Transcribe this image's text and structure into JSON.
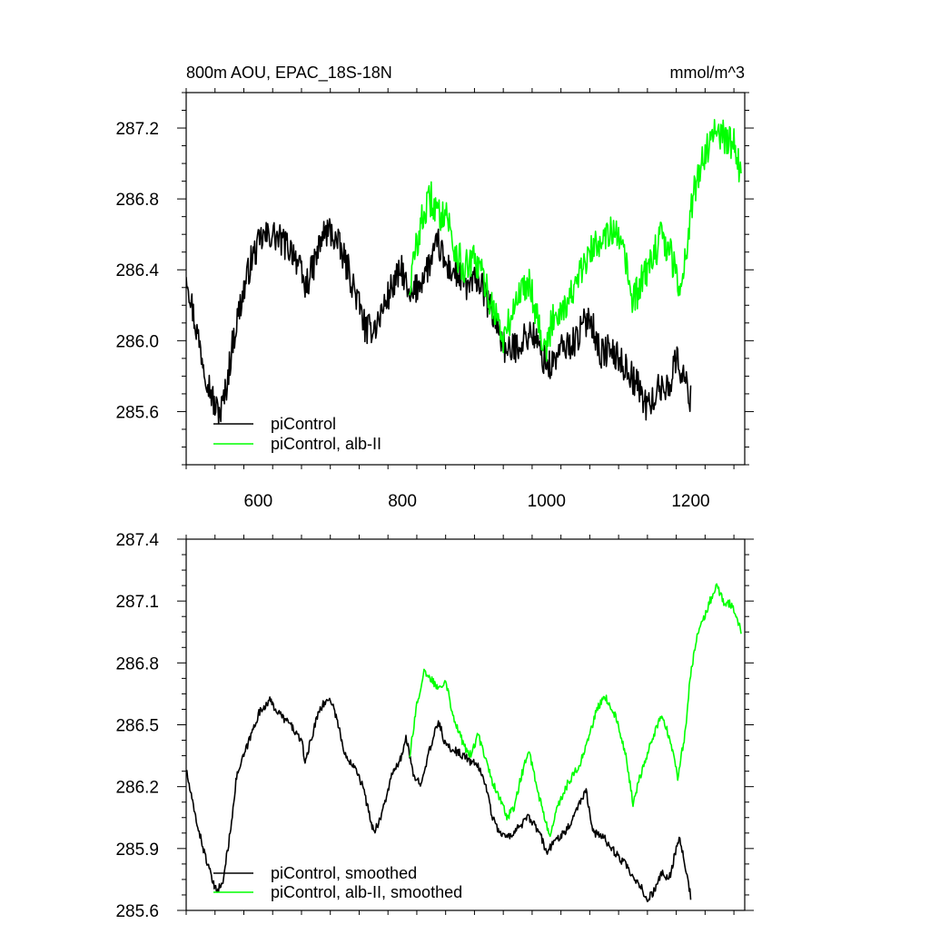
{
  "chart_data": [
    {
      "type": "line",
      "title": "800m AOU, EPAC_18S-18N",
      "units": "mmol/m^3",
      "xlim": [
        500,
        1275
      ],
      "ylim": [
        285.3,
        287.4
      ],
      "x_ticks": [
        600,
        800,
        1000,
        1200
      ],
      "y_ticks": [
        285.6,
        286.0,
        286.4,
        286.8,
        287.2
      ],
      "y_tick_labels": [
        "285.6",
        "286.0",
        "286.4",
        "286.8",
        "287.2"
      ],
      "grid": false,
      "legend_position": "bottom-left",
      "series": [
        {
          "name": "piControl",
          "color": "#000000",
          "noise": 0.09,
          "points": [
            [
              500,
              286.4
            ],
            [
              510,
              286.15
            ],
            [
              520,
              285.95
            ],
            [
              530,
              285.78
            ],
            [
              540,
              285.62
            ],
            [
              548,
              285.6
            ],
            [
              555,
              285.72
            ],
            [
              565,
              286.0
            ],
            [
              575,
              286.2
            ],
            [
              590,
              286.45
            ],
            [
              605,
              286.58
            ],
            [
              620,
              286.6
            ],
            [
              635,
              286.55
            ],
            [
              650,
              286.5
            ],
            [
              665,
              286.3
            ],
            [
              675,
              286.4
            ],
            [
              690,
              286.6
            ],
            [
              700,
              286.62
            ],
            [
              710,
              286.55
            ],
            [
              725,
              286.4
            ],
            [
              740,
              286.2
            ],
            [
              750,
              286.05
            ],
            [
              765,
              286.1
            ],
            [
              785,
              286.3
            ],
            [
              800,
              286.4
            ],
            [
              810,
              286.22
            ],
            [
              820,
              286.3
            ],
            [
              840,
              286.45
            ],
            [
              850,
              286.55
            ],
            [
              860,
              286.42
            ],
            [
              875,
              286.38
            ],
            [
              890,
              286.3
            ],
            [
              905,
              286.35
            ],
            [
              920,
              286.2
            ],
            [
              935,
              286.05
            ],
            [
              945,
              285.92
            ],
            [
              960,
              285.98
            ],
            [
              980,
              286.05
            ],
            [
              995,
              285.9
            ],
            [
              1005,
              285.85
            ],
            [
              1020,
              285.95
            ],
            [
              1040,
              286.0
            ],
            [
              1060,
              286.15
            ],
            [
              1075,
              285.92
            ],
            [
              1085,
              285.95
            ],
            [
              1100,
              285.9
            ],
            [
              1115,
              285.82
            ],
            [
              1130,
              285.72
            ],
            [
              1140,
              285.62
            ],
            [
              1155,
              285.72
            ],
            [
              1170,
              285.75
            ],
            [
              1180,
              285.9
            ],
            [
              1190,
              285.8
            ],
            [
              1200,
              285.67
            ]
          ]
        },
        {
          "name": "piControl, alb-II",
          "color": "#00ff00",
          "noise": 0.1,
          "points": [
            [
              810,
              286.3
            ],
            [
              820,
              286.55
            ],
            [
              830,
              286.72
            ],
            [
              840,
              286.8
            ],
            [
              850,
              286.7
            ],
            [
              860,
              286.75
            ],
            [
              870,
              286.55
            ],
            [
              885,
              286.4
            ],
            [
              900,
              286.45
            ],
            [
              910,
              286.38
            ],
            [
              920,
              286.25
            ],
            [
              930,
              286.15
            ],
            [
              940,
              286.0
            ],
            [
              950,
              286.12
            ],
            [
              960,
              286.25
            ],
            [
              975,
              286.35
            ],
            [
              985,
              286.18
            ],
            [
              995,
              286.0
            ],
            [
              1000,
              285.95
            ],
            [
              1010,
              286.15
            ],
            [
              1025,
              286.2
            ],
            [
              1040,
              286.3
            ],
            [
              1055,
              286.45
            ],
            [
              1070,
              286.55
            ],
            [
              1080,
              286.62
            ],
            [
              1095,
              286.6
            ],
            [
              1110,
              286.45
            ],
            [
              1120,
              286.2
            ],
            [
              1130,
              286.32
            ],
            [
              1145,
              286.45
            ],
            [
              1160,
              286.6
            ],
            [
              1175,
              286.45
            ],
            [
              1185,
              286.3
            ],
            [
              1195,
              286.55
            ],
            [
              1205,
              286.85
            ],
            [
              1215,
              287.0
            ],
            [
              1225,
              287.12
            ],
            [
              1235,
              287.2
            ],
            [
              1245,
              287.15
            ],
            [
              1260,
              287.12
            ],
            [
              1270,
              286.92
            ]
          ]
        }
      ]
    },
    {
      "type": "line",
      "title": "",
      "xlim": [
        500,
        1275
      ],
      "ylim": [
        285.6,
        287.4
      ],
      "x_ticks": [
        600,
        800,
        1000,
        1200
      ],
      "y_ticks": [
        285.6,
        285.9,
        286.2,
        286.5,
        286.8,
        287.1,
        287.4
      ],
      "y_tick_labels": [
        "285.6",
        "285.9",
        "286.2",
        "286.5",
        "286.8",
        "287.1",
        "287.4"
      ],
      "grid": false,
      "legend_position": "bottom-left",
      "series": [
        {
          "name": "piControl, smoothed",
          "color": "#000000",
          "noise": 0.02,
          "points": [
            [
              500,
              286.28
            ],
            [
              510,
              286.1
            ],
            [
              520,
              285.95
            ],
            [
              530,
              285.82
            ],
            [
              540,
              285.7
            ],
            [
              550,
              285.72
            ],
            [
              560,
              285.95
            ],
            [
              570,
              286.25
            ],
            [
              585,
              286.4
            ],
            [
              600,
              286.55
            ],
            [
              615,
              286.62
            ],
            [
              630,
              286.55
            ],
            [
              645,
              286.5
            ],
            [
              660,
              286.42
            ],
            [
              665,
              286.32
            ],
            [
              675,
              286.45
            ],
            [
              685,
              286.58
            ],
            [
              700,
              286.63
            ],
            [
              710,
              286.52
            ],
            [
              720,
              286.35
            ],
            [
              735,
              286.3
            ],
            [
              745,
              286.2
            ],
            [
              760,
              285.98
            ],
            [
              770,
              286.05
            ],
            [
              785,
              286.25
            ],
            [
              800,
              286.35
            ],
            [
              805,
              286.45
            ],
            [
              815,
              286.25
            ],
            [
              825,
              286.22
            ],
            [
              840,
              286.4
            ],
            [
              850,
              286.52
            ],
            [
              860,
              286.4
            ],
            [
              870,
              286.38
            ],
            [
              885,
              286.35
            ],
            [
              895,
              286.32
            ],
            [
              905,
              286.3
            ],
            [
              915,
              286.22
            ],
            [
              925,
              286.05
            ],
            [
              935,
              285.98
            ],
            [
              945,
              285.95
            ],
            [
              960,
              286.0
            ],
            [
              975,
              286.05
            ],
            [
              990,
              285.98
            ],
            [
              1000,
              285.88
            ],
            [
              1015,
              285.95
            ],
            [
              1030,
              286.0
            ],
            [
              1045,
              286.12
            ],
            [
              1055,
              286.18
            ],
            [
              1065,
              285.98
            ],
            [
              1080,
              285.95
            ],
            [
              1095,
              285.88
            ],
            [
              1110,
              285.82
            ],
            [
              1120,
              285.75
            ],
            [
              1130,
              285.72
            ],
            [
              1140,
              285.65
            ],
            [
              1150,
              285.7
            ],
            [
              1160,
              285.78
            ],
            [
              1170,
              285.75
            ],
            [
              1180,
              285.9
            ],
            [
              1185,
              285.95
            ],
            [
              1190,
              285.85
            ],
            [
              1200,
              285.67
            ]
          ]
        },
        {
          "name": "piControl, alb-II, smoothed",
          "color": "#00ff00",
          "noise": 0.02,
          "points": [
            [
              810,
              286.35
            ],
            [
              820,
              286.6
            ],
            [
              830,
              286.75
            ],
            [
              840,
              286.72
            ],
            [
              850,
              286.68
            ],
            [
              860,
              286.72
            ],
            [
              870,
              286.55
            ],
            [
              885,
              286.4
            ],
            [
              895,
              286.35
            ],
            [
              905,
              286.45
            ],
            [
              915,
              286.35
            ],
            [
              925,
              286.22
            ],
            [
              935,
              286.15
            ],
            [
              945,
              286.05
            ],
            [
              955,
              286.1
            ],
            [
              965,
              286.25
            ],
            [
              975,
              286.38
            ],
            [
              985,
              286.22
            ],
            [
              995,
              286.08
            ],
            [
              1005,
              285.95
            ],
            [
              1015,
              286.1
            ],
            [
              1030,
              286.22
            ],
            [
              1045,
              286.3
            ],
            [
              1060,
              286.45
            ],
            [
              1070,
              286.58
            ],
            [
              1082,
              286.63
            ],
            [
              1095,
              286.55
            ],
            [
              1110,
              286.35
            ],
            [
              1120,
              286.12
            ],
            [
              1130,
              286.25
            ],
            [
              1145,
              286.42
            ],
            [
              1160,
              286.55
            ],
            [
              1172,
              286.42
            ],
            [
              1182,
              286.25
            ],
            [
              1192,
              286.45
            ],
            [
              1200,
              286.75
            ],
            [
              1210,
              286.95
            ],
            [
              1222,
              287.05
            ],
            [
              1235,
              287.18
            ],
            [
              1245,
              287.1
            ],
            [
              1258,
              287.08
            ],
            [
              1270,
              286.95
            ]
          ]
        }
      ]
    }
  ]
}
